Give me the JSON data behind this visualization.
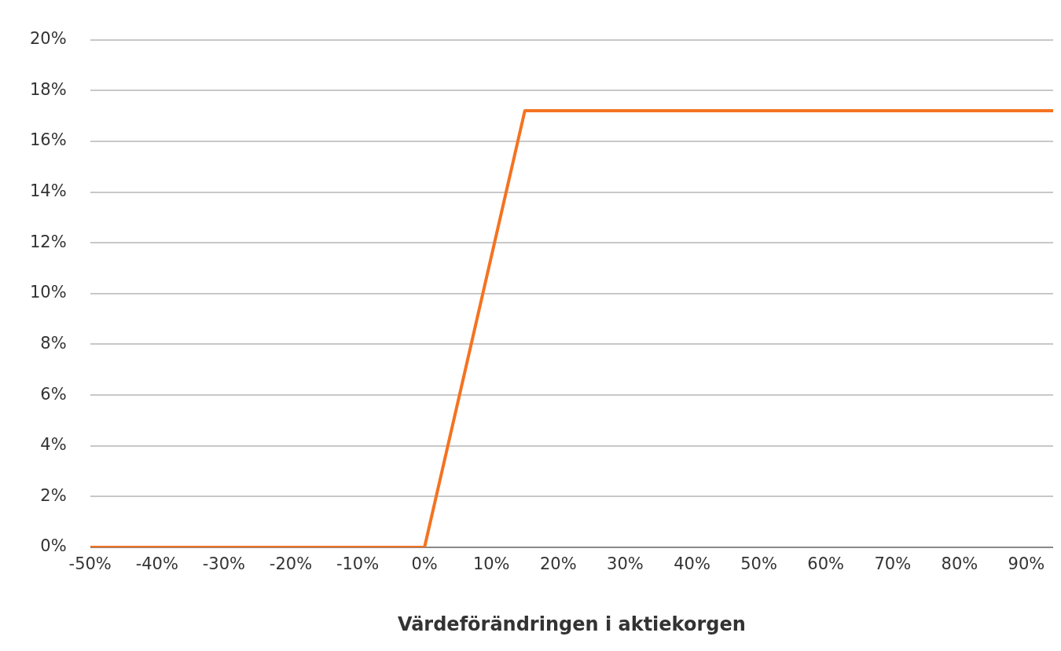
{
  "chart_data": {
    "type": "line",
    "xlabel": "Värdeförändringen i aktiekorgen",
    "x": [
      -50,
      0,
      15,
      94
    ],
    "series": [
      {
        "color": "#f47321",
        "values": [
          0,
          0,
          17.2,
          17.2
        ]
      }
    ],
    "xlim": [
      -50,
      94
    ],
    "xticks": [
      {
        "value": -50,
        "label": "-50%"
      },
      {
        "value": -40,
        "label": "-40%"
      },
      {
        "value": -30,
        "label": "-30%"
      },
      {
        "value": -20,
        "label": "-20%"
      },
      {
        "value": -10,
        "label": "-10%"
      },
      {
        "value": 0,
        "label": "0%"
      },
      {
        "value": 10,
        "label": "10%"
      },
      {
        "value": 20,
        "label": "20%"
      },
      {
        "value": 30,
        "label": "30%"
      },
      {
        "value": 40,
        "label": "40%"
      },
      {
        "value": 50,
        "label": "50%"
      },
      {
        "value": 60,
        "label": "60%"
      },
      {
        "value": 70,
        "label": "70%"
      },
      {
        "value": 80,
        "label": "80%"
      },
      {
        "value": 90,
        "label": "90%"
      }
    ],
    "ylim": [
      0,
      20
    ],
    "yticks": [
      {
        "value": 0,
        "label": "0%"
      },
      {
        "value": 2,
        "label": "2%"
      },
      {
        "value": 4,
        "label": "4%"
      },
      {
        "value": 6,
        "label": "6%"
      },
      {
        "value": 8,
        "label": "8%"
      },
      {
        "value": 10,
        "label": "10%"
      },
      {
        "value": 12,
        "label": "12%"
      },
      {
        "value": 14,
        "label": "14%"
      },
      {
        "value": 16,
        "label": "16%"
      },
      {
        "value": 18,
        "label": "18%"
      },
      {
        "value": 20,
        "label": "20%"
      }
    ],
    "grid": "y",
    "legend": false,
    "marker": "none",
    "line_style": "solid"
  }
}
